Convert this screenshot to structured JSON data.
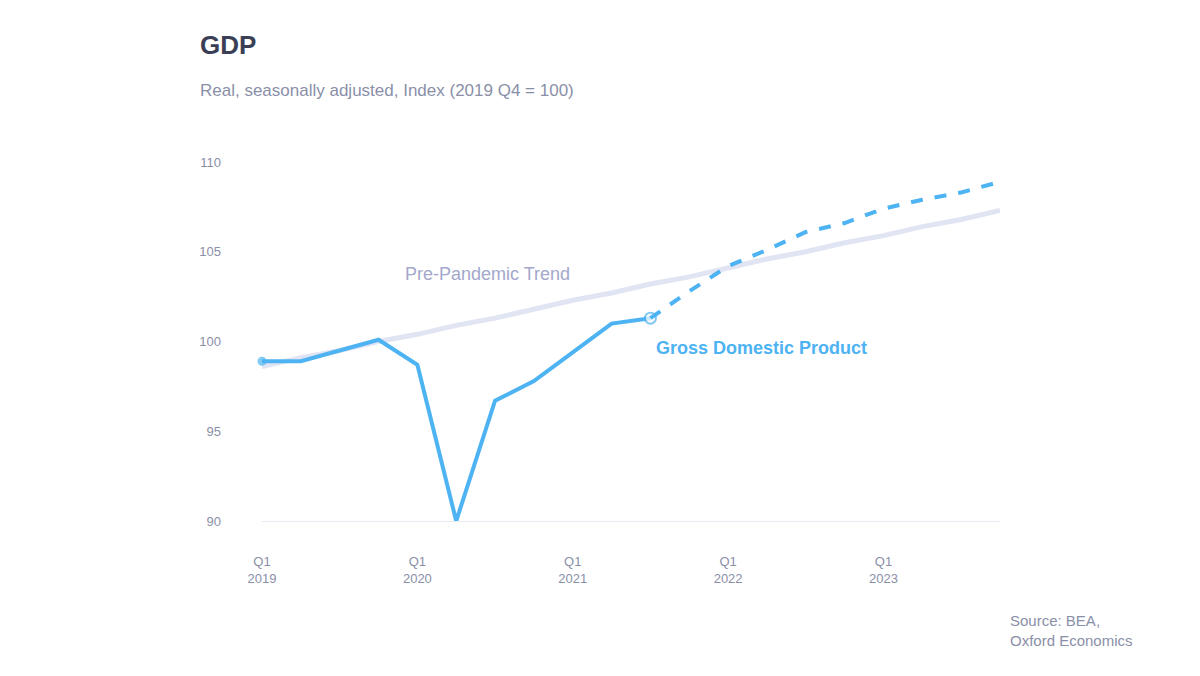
{
  "chart_data": {
    "type": "line",
    "title": "GDP",
    "subtitle": "Real, seasonally adjusted, Index (2019 Q4 = 100)",
    "source": [
      "Source: BEA,",
      "Oxford Economics"
    ],
    "categories": [
      "Q1 2019",
      null,
      null,
      null,
      "Q1 2020",
      null,
      null,
      null,
      "Q1 2021",
      null,
      null,
      null,
      "Q1 2022",
      null,
      null,
      null,
      "Q1 2023",
      null,
      null,
      null
    ],
    "series": [
      {
        "name": "Pre-Pandemic Trend",
        "color": "#e1e4f3",
        "line_style": "solid",
        "values": [
          98.6,
          99.1,
          99.5,
          100.0,
          100.4,
          100.9,
          101.3,
          101.8,
          102.3,
          102.7,
          103.2,
          103.6,
          104.1,
          104.6,
          105.0,
          105.5,
          105.9,
          106.4,
          106.8,
          107.3
        ]
      },
      {
        "name": "Gross Domestic Product",
        "color": "#4db3f2",
        "line_style": "solid",
        "marker": "circle",
        "values": [
          98.9,
          98.9,
          99.5,
          100.1,
          98.7,
          90.0,
          96.7,
          97.8,
          99.4,
          101.0,
          101.3,
          null,
          null,
          null,
          null,
          null,
          null,
          null,
          null,
          null
        ]
      },
      {
        "color": "#4db3f2",
        "line_style": "dashed",
        "values": [
          null,
          null,
          null,
          null,
          null,
          null,
          null,
          null,
          null,
          null,
          101.3,
          102.8,
          104.2,
          105.1,
          106.1,
          106.6,
          107.4,
          107.9,
          108.3,
          108.9
        ]
      }
    ],
    "ylim": [
      90,
      110
    ],
    "yticks": [
      90,
      95,
      100,
      105,
      110
    ],
    "grid": false,
    "legend": false
  }
}
